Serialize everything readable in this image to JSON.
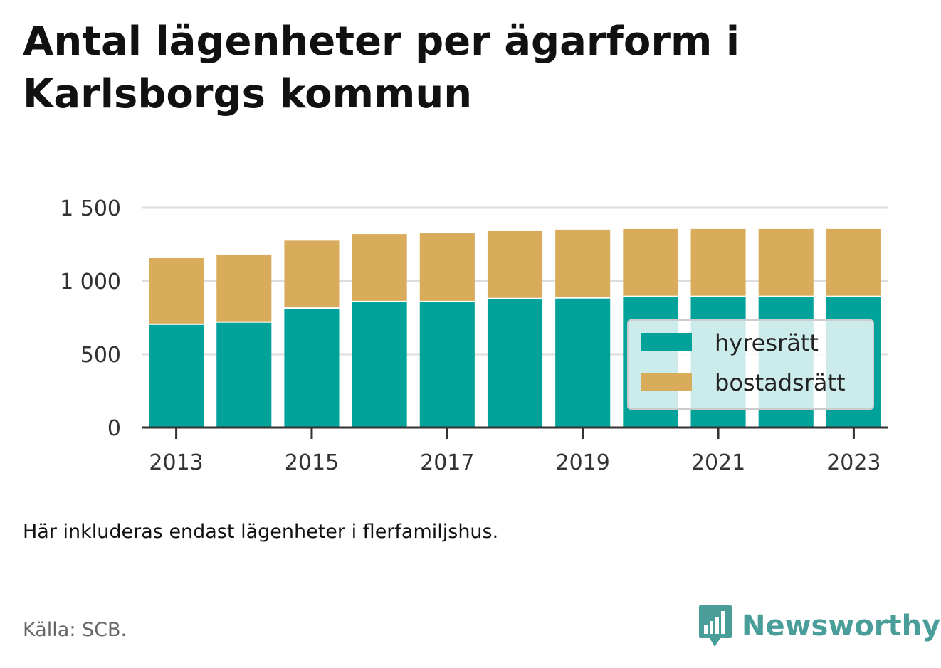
{
  "title": "Antal lägenheter per ägarform i Karlsborgs kommun",
  "note": "Här inkluderas endast lägenheter i flerfamiljshus.",
  "source": "Källa: SCB.",
  "brand": {
    "name": "Newsworthy",
    "icon": "bar-chart-speech-bubble-icon",
    "color": "#4a9e99"
  },
  "chart_data": {
    "type": "bar",
    "stacked": true,
    "title": "Antal lägenheter per ägarform i Karlsborgs kommun",
    "xlabel": "",
    "ylabel": "",
    "categories": [
      "2013",
      "2014",
      "2015",
      "2016",
      "2017",
      "2018",
      "2019",
      "2020",
      "2021",
      "2022",
      "2023"
    ],
    "x_tick_labels": [
      "2013",
      "2015",
      "2017",
      "2019",
      "2021",
      "2023"
    ],
    "y_ticks": [
      0,
      500,
      1000,
      1500
    ],
    "y_tick_labels": [
      "0",
      "500",
      "1 000",
      "1 500"
    ],
    "ylim": [
      0,
      1500
    ],
    "grid": true,
    "legend_position": "bottom-right",
    "series": [
      {
        "name": "hyresrätt",
        "color": "#00a29a",
        "values": [
          700,
          715,
          810,
          855,
          855,
          875,
          880,
          890,
          890,
          890,
          890
        ]
      },
      {
        "name": "bostadsrätt",
        "color": "#d9ac5b",
        "values": [
          460,
          465,
          465,
          465,
          470,
          465,
          470,
          465,
          465,
          465,
          465
        ]
      }
    ]
  }
}
